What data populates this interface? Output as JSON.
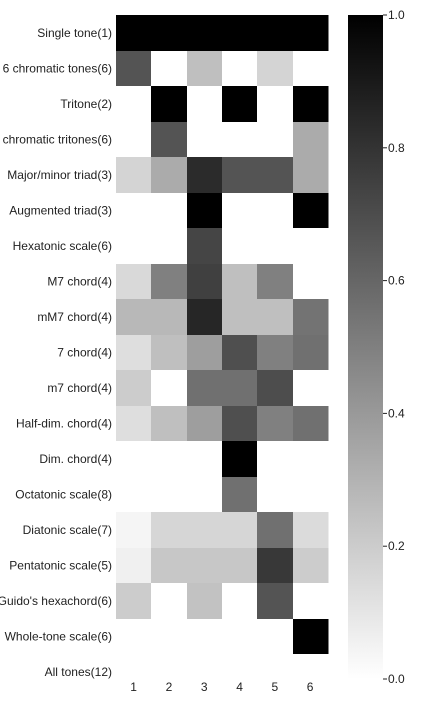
{
  "chart_data": {
    "type": "heatmap",
    "title": "",
    "xlabel": "",
    "ylabel": "",
    "x_categories": [
      "1",
      "2",
      "3",
      "4",
      "5",
      "6"
    ],
    "y_categories": [
      "Single tone(1)",
      "6 chromatic tones(6)",
      "Tritone(2)",
      "chromatic tritones(6)",
      "Major/minor triad(3)",
      "Augmented triad(3)",
      "Hexatonic scale(6)",
      "M7 chord(4)",
      "mM7 chord(4)",
      "7 chord(4)",
      "m7 chord(4)",
      "Half-dim. chord(4)",
      "Dim. chord(4)",
      "Octatonic scale(8)",
      "Diatonic scale(7)",
      "Pentatonic scale(5)",
      "Guido's hexachord(6)",
      "Whole-tone scale(6)",
      "All tones(12)"
    ],
    "values": [
      [
        1.0,
        1.0,
        1.0,
        1.0,
        1.0,
        1.0
      ],
      [
        0.67,
        0.0,
        0.25,
        0.0,
        0.17,
        0.0
      ],
      [
        0.0,
        1.0,
        0.0,
        1.0,
        0.0,
        1.0
      ],
      [
        0.0,
        0.67,
        0.0,
        0.0,
        0.0,
        0.33
      ],
      [
        0.17,
        0.33,
        0.83,
        0.67,
        0.67,
        0.33
      ],
      [
        0.0,
        0.0,
        1.0,
        0.0,
        0.0,
        1.0
      ],
      [
        0.0,
        0.0,
        0.73,
        0.0,
        0.0,
        0.0
      ],
      [
        0.15,
        0.5,
        0.75,
        0.25,
        0.5,
        0.0
      ],
      [
        0.28,
        0.28,
        0.85,
        0.25,
        0.25,
        0.55
      ],
      [
        0.13,
        0.25,
        0.38,
        0.69,
        0.5,
        0.56
      ],
      [
        0.2,
        0.0,
        0.56,
        0.56,
        0.7,
        0.0
      ],
      [
        0.13,
        0.25,
        0.38,
        0.69,
        0.5,
        0.56
      ],
      [
        0.0,
        0.0,
        0.0,
        1.0,
        0.0,
        0.0
      ],
      [
        0.0,
        0.0,
        0.0,
        0.56,
        0.0,
        0.0
      ],
      [
        0.04,
        0.16,
        0.16,
        0.16,
        0.56,
        0.14
      ],
      [
        0.06,
        0.22,
        0.22,
        0.22,
        0.78,
        0.2
      ],
      [
        0.2,
        0.0,
        0.24,
        0.0,
        0.67,
        0.0
      ],
      [
        0.0,
        0.0,
        0.0,
        0.0,
        0.0,
        1.0
      ],
      [
        0.0,
        0.0,
        0.0,
        0.0,
        0.0,
        0.0
      ]
    ],
    "vmin": 0.0,
    "vmax": 1.0,
    "colormap": [
      "#ffffff",
      "#000000"
    ],
    "colorbar_ticks": [
      "0.0",
      "0.2",
      "0.4",
      "0.6",
      "0.8",
      "1.0"
    ],
    "colorbar_tick_values": [
      0.0,
      0.2,
      0.4,
      0.6,
      0.8,
      1.0
    ],
    "grid": false,
    "legend": "colorbar-right"
  }
}
